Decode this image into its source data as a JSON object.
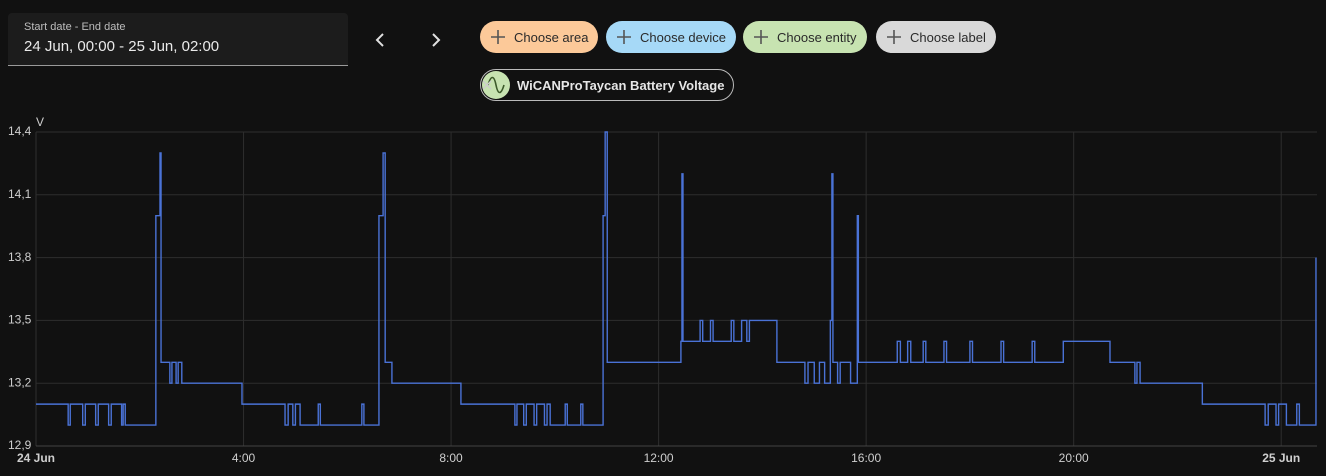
{
  "date_picker": {
    "label": "Start date - End date",
    "value": "24 Jun, 00:00 - 25 Jun, 02:00"
  },
  "filters": [
    "Choose area",
    "Choose device",
    "Choose entity",
    "Choose label"
  ],
  "selected_entity": "WiCANProTaycan Battery Voltage",
  "chart_data": {
    "type": "line",
    "y_label": "V",
    "step": true,
    "grid": true,
    "xlim": [
      0,
      24.69
    ],
    "ylim": [
      12.9,
      14.4
    ],
    "xticks": [
      {
        "value": 0,
        "label": "24 Jun"
      },
      {
        "value": 4,
        "label": "4:00"
      },
      {
        "value": 8,
        "label": "8:00"
      },
      {
        "value": 12,
        "label": "12:00"
      },
      {
        "value": 16,
        "label": "16:00"
      },
      {
        "value": 20,
        "label": "20:00"
      },
      {
        "value": 24,
        "label": "25 Jun"
      }
    ],
    "yticks": [
      {
        "value": 12.9,
        "label": "12,9"
      },
      {
        "value": 13.2,
        "label": "13,2"
      },
      {
        "value": 13.5,
        "label": "13,5"
      },
      {
        "value": 13.8,
        "label": "13,8"
      },
      {
        "value": 14.1,
        "label": "14,1"
      },
      {
        "value": 14.4,
        "label": "14,4"
      }
    ],
    "series": [
      {
        "name": "WiCANProTaycan Battery Voltage",
        "color": "#4a72d6",
        "x": [
          0,
          0.62,
          0.66,
          0.9,
          0.95,
          1.15,
          1.2,
          1.4,
          1.45,
          1.65,
          1.68,
          1.72,
          2.31,
          2.39,
          2.41,
          2.58,
          2.62,
          2.7,
          2.74,
          2.81,
          3.97,
          4.8,
          4.86,
          4.95,
          5.0,
          5.09,
          5.44,
          5.48,
          6.28,
          6.32,
          6.61,
          6.69,
          6.73,
          6.86,
          8.19,
          9.23,
          9.27,
          9.4,
          9.45,
          9.6,
          9.65,
          9.8,
          9.85,
          9.91,
          10.2,
          10.24,
          10.5,
          10.54,
          10.93,
          10.97,
          11.01,
          12.43,
          12.45,
          12.47,
          12.8,
          12.85,
          13.0,
          13.05,
          13.4,
          13.45,
          13.6,
          13.7,
          13.75,
          14.28,
          14.82,
          14.88,
          15.0,
          15.1,
          15.2,
          15.31,
          15.34,
          15.36,
          15.45,
          15.5,
          15.7,
          15.83,
          15.85,
          16.6,
          16.66,
          16.8,
          16.86,
          17.1,
          17.15,
          17.5,
          17.55,
          18.0,
          18.05,
          18.6,
          18.65,
          19.2,
          19.25,
          19.8,
          20.7,
          21.18,
          21.22,
          21.28,
          22.48,
          23.69,
          23.75,
          23.9,
          23.95,
          24.1,
          24.3,
          24.35,
          24.67
        ],
        "values": [
          13.1,
          13.0,
          13.1,
          13.0,
          13.1,
          13.0,
          13.1,
          13.0,
          13.1,
          13.0,
          13.1,
          13.0,
          14.0,
          14.3,
          13.3,
          13.2,
          13.3,
          13.2,
          13.3,
          13.2,
          13.1,
          13.0,
          13.1,
          13.0,
          13.1,
          13.0,
          13.1,
          13.0,
          13.1,
          13.0,
          14.0,
          14.3,
          13.3,
          13.2,
          13.1,
          13.0,
          13.1,
          13.0,
          13.1,
          13.0,
          13.1,
          13.0,
          13.1,
          13.0,
          13.1,
          13.0,
          13.1,
          13.0,
          14.0,
          14.4,
          13.3,
          13.4,
          14.2,
          13.4,
          13.5,
          13.4,
          13.5,
          13.4,
          13.5,
          13.4,
          13.5,
          13.4,
          13.5,
          13.3,
          13.2,
          13.3,
          13.2,
          13.3,
          13.2,
          13.5,
          14.2,
          13.3,
          13.2,
          13.3,
          13.2,
          14.0,
          13.3,
          13.4,
          13.3,
          13.4,
          13.3,
          13.4,
          13.3,
          13.4,
          13.3,
          13.4,
          13.3,
          13.4,
          13.3,
          13.4,
          13.3,
          13.4,
          13.3,
          13.2,
          13.3,
          13.2,
          13.1,
          13.0,
          13.1,
          13.0,
          13.1,
          13.0,
          13.1,
          13.0,
          13.8
        ]
      }
    ]
  }
}
